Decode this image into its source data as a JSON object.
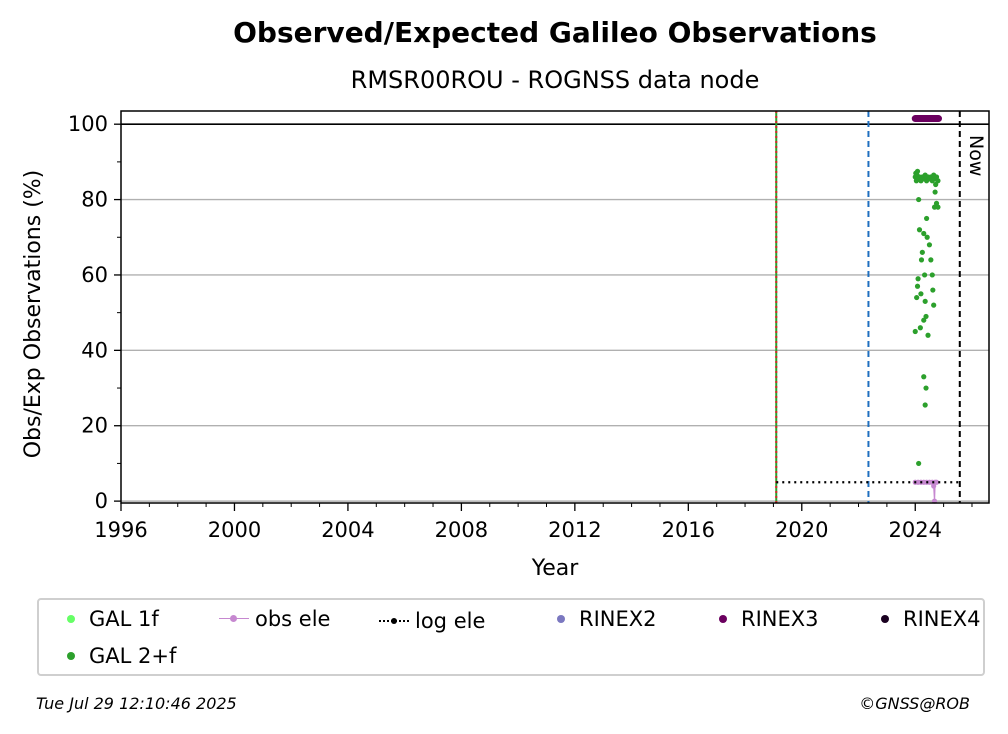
{
  "chart_data": {
    "type": "scatter",
    "title": "Observed/Expected Galileo Observations",
    "subtitle": "RMSR00ROU - ROGNSS data node",
    "xlabel": "Year",
    "ylabel": "Obs/Exp Observations (%)",
    "xlim": [
      1996,
      2026.6
    ],
    "ylim": [
      -0.5,
      103.5
    ],
    "x_ticks": [
      "1996",
      "2000",
      "2004",
      "2008",
      "2012",
      "2016",
      "2020",
      "2024"
    ],
    "y_ticks": [
      "0",
      "20",
      "40",
      "60",
      "80",
      "100"
    ],
    "grid": "horizontal",
    "reference_lines": [
      {
        "orientation": "horizontal",
        "y": 100,
        "color": "#000000",
        "style": "solid"
      },
      {
        "orientation": "vertical",
        "x": 2019.1,
        "color": "#2ca02c",
        "style": "solid"
      },
      {
        "orientation": "vertical",
        "x": 2019.1,
        "color": "#d62728",
        "style": "dotted"
      },
      {
        "orientation": "vertical",
        "x": 2022.35,
        "color": "#1f6fbf",
        "style": "dashed"
      },
      {
        "orientation": "vertical",
        "x": 2025.57,
        "color": "#000000",
        "style": "dashed",
        "label": "Now"
      }
    ],
    "series": [
      {
        "name": "GAL 1f",
        "color": "#66ff66",
        "values": []
      },
      {
        "name": "GAL 2+f",
        "color": "#2ca02c",
        "points": [
          [
            2024.0,
            86
          ],
          [
            2024.02,
            87
          ],
          [
            2024.04,
            85
          ],
          [
            2024.06,
            86.5
          ],
          [
            2024.08,
            87.5
          ],
          [
            2024.1,
            86
          ],
          [
            2024.12,
            85.5
          ],
          [
            2024.15,
            86
          ],
          [
            2024.2,
            85
          ],
          [
            2024.25,
            86
          ],
          [
            2024.3,
            85.5
          ],
          [
            2024.35,
            86.5
          ],
          [
            2024.4,
            85
          ],
          [
            2024.45,
            86
          ],
          [
            2024.5,
            85.5
          ],
          [
            2024.55,
            86
          ],
          [
            2024.6,
            85
          ],
          [
            2024.65,
            86.5
          ],
          [
            2024.7,
            85.5
          ],
          [
            2024.75,
            86
          ],
          [
            2024.8,
            85
          ],
          [
            2024.0,
            45
          ],
          [
            2024.05,
            54
          ],
          [
            2024.08,
            57
          ],
          [
            2024.1,
            59
          ],
          [
            2024.12,
            80
          ],
          [
            2024.15,
            72
          ],
          [
            2024.18,
            46
          ],
          [
            2024.2,
            55
          ],
          [
            2024.22,
            64
          ],
          [
            2024.25,
            66
          ],
          [
            2024.3,
            48
          ],
          [
            2024.3,
            71
          ],
          [
            2024.33,
            60
          ],
          [
            2024.35,
            53
          ],
          [
            2024.38,
            49
          ],
          [
            2024.4,
            75
          ],
          [
            2024.42,
            70
          ],
          [
            2024.45,
            44
          ],
          [
            2024.5,
            68
          ],
          [
            2024.55,
            64
          ],
          [
            2024.6,
            60
          ],
          [
            2024.62,
            56
          ],
          [
            2024.65,
            52
          ],
          [
            2024.68,
            78
          ],
          [
            2024.7,
            82
          ],
          [
            2024.72,
            84
          ],
          [
            2024.75,
            79
          ],
          [
            2024.8,
            78
          ],
          [
            2024.12,
            10
          ],
          [
            2024.3,
            33
          ],
          [
            2024.38,
            30
          ],
          [
            2024.35,
            25.5
          ]
        ]
      },
      {
        "name": "obs ele",
        "color": "#c688d0",
        "points": [
          [
            2024.0,
            5
          ],
          [
            2024.1,
            5
          ],
          [
            2024.2,
            5
          ],
          [
            2024.3,
            5
          ],
          [
            2024.4,
            5
          ],
          [
            2024.5,
            5
          ],
          [
            2024.6,
            5
          ],
          [
            2024.65,
            4
          ],
          [
            2024.68,
            0
          ],
          [
            2024.7,
            5
          ],
          [
            2024.75,
            5
          ]
        ]
      },
      {
        "name": "log ele",
        "color": "#000000",
        "points": [
          [
            2019.1,
            5
          ],
          [
            2025.57,
            5
          ]
        ]
      },
      {
        "name": "RINEX2",
        "color": "#7b78c0",
        "values": []
      },
      {
        "name": "RINEX3",
        "color": "#6b005f",
        "x_range": [
          2024.0,
          2024.82
        ],
        "y": 101.5
      },
      {
        "name": "RINEX4",
        "color": "#1a0020",
        "values": []
      }
    ]
  },
  "legend": {
    "gal1f": "GAL 1f",
    "gal2f": "GAL 2+f",
    "obs_ele": "obs ele",
    "log_ele": "log ele",
    "rinex2": "RINEX2",
    "rinex3": "RINEX3",
    "rinex4": "RINEX4"
  },
  "now_label": "Now",
  "footer": {
    "timestamp": "Tue Jul 29 12:10:46 2025",
    "copyright": "©GNSS@ROB"
  }
}
